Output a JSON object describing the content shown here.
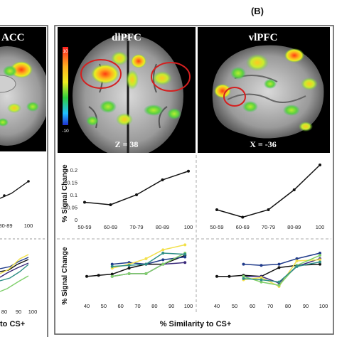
{
  "panel_label": "(B)",
  "left_panel": {
    "title_fragment": "ACC",
    "x_ticks_mid": [
      "80-89",
      "100"
    ],
    "x_ticks_bottom": [
      "80",
      "90",
      "100"
    ],
    "xlabel_fragment": "to CS+"
  },
  "brain_images": {
    "dlpfc": {
      "title": "dlPFC",
      "slice": "Z = 38",
      "colorbar_max": "10",
      "colorbar_min": "-10"
    },
    "vlpfc": {
      "title": "vlPFC",
      "slice": "X = -36"
    }
  },
  "axis_labels": {
    "ylabel_mid": "% Signal Change",
    "ylabel_bottom": "% Signal Change",
    "xlabel_bottom": "% Similarity to CS+"
  },
  "colors": {
    "frame": "#555555",
    "highlight_circle": "#d42020",
    "line_black": "#111111",
    "line_purple": "#3a2a7a",
    "line_navy": "#1f3a8a",
    "line_yellow": "#f2e04a",
    "line_green": "#7fcf6a",
    "line_teal": "#2f8f86"
  },
  "chart_data": [
    {
      "id": "dlpfc-mid",
      "type": "line",
      "categories": [
        "50-59",
        "60-69",
        "70-79",
        "80-89",
        "100"
      ],
      "y_ticks": [
        "0",
        "0.05",
        "0.1",
        "0.15",
        "0.2"
      ],
      "ylim": [
        0,
        0.22
      ],
      "ylabel": "% Signal Change",
      "series": [
        {
          "values": [
            0.07,
            0.06,
            0.1,
            0.16,
            0.195
          ],
          "color": "#111111"
        }
      ]
    },
    {
      "id": "vlpfc-mid",
      "type": "line",
      "categories": [
        "50-59",
        "60-69",
        "70-79",
        "80-89",
        "100"
      ],
      "ylim": [
        0,
        0.22
      ],
      "series": [
        {
          "values": [
            0.04,
            0.01,
            0.04,
            0.12,
            0.22
          ],
          "color": "#111111"
        }
      ]
    },
    {
      "id": "dlpfc-bottom",
      "type": "line",
      "x_ticks": [
        "40",
        "50",
        "60",
        "70",
        "80",
        "90",
        "100"
      ],
      "xlim": [
        40,
        100
      ],
      "ylim": [
        0,
        1
      ],
      "ylabel": "% Signal Change",
      "xlabel": "% Similarity to CS+",
      "series": [
        {
          "color": "#111111",
          "x": [
            40,
            47,
            55,
            65,
            75,
            85,
            98
          ],
          "values": [
            0.4,
            0.42,
            0.44,
            0.55,
            0.62,
            0.62,
            0.78
          ]
        },
        {
          "color": "#3a2a7a",
          "x": [
            55,
            65,
            75,
            85,
            98
          ],
          "values": [
            0.4,
            0.45,
            0.45,
            0.62,
            0.65
          ]
        },
        {
          "color": "#1f3a8a",
          "x": [
            55,
            65,
            75,
            85,
            98
          ],
          "values": [
            0.62,
            0.65,
            0.62,
            0.7,
            0.75
          ]
        },
        {
          "color": "#f2e04a",
          "x": [
            55,
            65,
            75,
            85,
            98
          ],
          "values": [
            0.55,
            0.62,
            0.72,
            0.88,
            0.97
          ]
        },
        {
          "color": "#7fcf6a",
          "x": [
            55,
            65,
            75,
            85,
            98
          ],
          "values": [
            0.4,
            0.45,
            0.45,
            0.62,
            0.82
          ]
        },
        {
          "color": "#2f8f86",
          "x": [
            55,
            65,
            75,
            85,
            98
          ],
          "values": [
            0.58,
            0.6,
            0.62,
            0.82,
            0.8
          ]
        }
      ]
    },
    {
      "id": "vlpfc-bottom",
      "type": "line",
      "x_ticks": [
        "40",
        "50",
        "60",
        "70",
        "80",
        "90",
        "100"
      ],
      "xlim": [
        40,
        100
      ],
      "ylim": [
        0,
        1
      ],
      "series": [
        {
          "color": "#1f3a8a",
          "x": [
            55,
            65,
            75,
            85,
            98
          ],
          "values": [
            0.62,
            0.6,
            0.62,
            0.72,
            0.82
          ]
        },
        {
          "color": "#111111",
          "x": [
            40,
            47,
            55,
            65,
            75,
            85,
            98
          ],
          "values": [
            0.4,
            0.4,
            0.42,
            0.4,
            0.56,
            0.6,
            0.62
          ]
        },
        {
          "color": "#3a2a7a",
          "x": [
            55,
            65,
            75,
            85,
            98
          ],
          "values": [
            0.4,
            0.4,
            0.28,
            0.58,
            0.72
          ]
        },
        {
          "color": "#f2e04a",
          "x": [
            55,
            65,
            75,
            85,
            98
          ],
          "values": [
            0.34,
            0.38,
            0.22,
            0.68,
            0.7
          ]
        },
        {
          "color": "#7fcf6a",
          "x": [
            55,
            65,
            75,
            85,
            98
          ],
          "values": [
            0.4,
            0.3,
            0.24,
            0.6,
            0.78
          ]
        },
        {
          "color": "#2f8f86",
          "x": [
            55,
            65,
            75,
            85,
            98
          ],
          "values": [
            0.36,
            0.34,
            0.3,
            0.58,
            0.66
          ]
        }
      ]
    }
  ]
}
